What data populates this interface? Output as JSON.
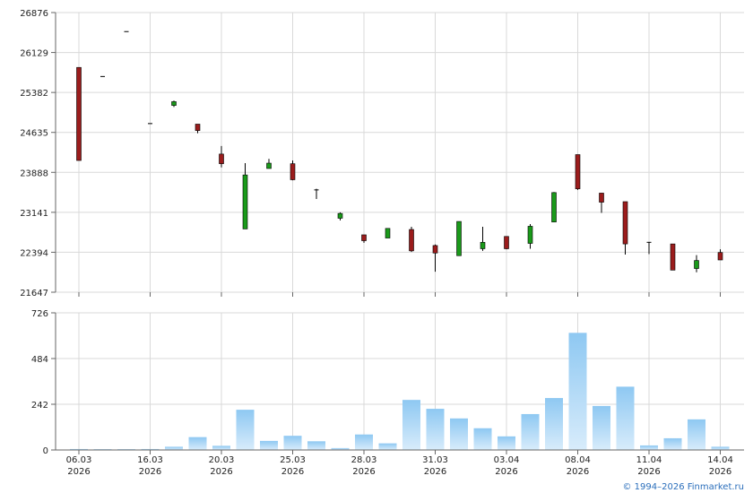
{
  "chart_data": [
    {
      "type": "candlestick",
      "ylim": [
        21647,
        26876
      ],
      "yticks": [
        "26876",
        "26129",
        "25382",
        "24635",
        "23888",
        "23141",
        "22394",
        "21647"
      ],
      "grid": true,
      "up_color": "#1a9a1a",
      "down_color": "#9b1c1c",
      "candles": [
        {
          "open": 25850,
          "high": 25850,
          "low": 24110,
          "close": 24110
        },
        {
          "open": 25680,
          "high": 25680,
          "low": 25680,
          "close": 25680
        },
        {
          "open": 26520,
          "high": 26520,
          "low": 26520,
          "close": 26520
        },
        {
          "open": 24800,
          "high": 24800,
          "low": 24800,
          "close": 24800
        },
        {
          "open": 25140,
          "high": 25230,
          "low": 25110,
          "close": 25210
        },
        {
          "open": 24790,
          "high": 24790,
          "low": 24620,
          "close": 24670
        },
        {
          "open": 24230,
          "high": 24380,
          "low": 23980,
          "close": 24050
        },
        {
          "open": 22830,
          "high": 24060,
          "low": 22830,
          "close": 23840
        },
        {
          "open": 23960,
          "high": 24140,
          "low": 23960,
          "close": 24060
        },
        {
          "open": 24050,
          "high": 24110,
          "low": 23740,
          "close": 23750
        },
        {
          "open": 23560,
          "high": 23580,
          "low": 23390,
          "close": 23560
        },
        {
          "open": 23030,
          "high": 23140,
          "low": 22990,
          "close": 23120
        },
        {
          "open": 22720,
          "high": 22720,
          "low": 22570,
          "close": 22610
        },
        {
          "open": 22660,
          "high": 22840,
          "low": 22660,
          "close": 22840
        },
        {
          "open": 22820,
          "high": 22870,
          "low": 22400,
          "close": 22420
        },
        {
          "open": 22520,
          "high": 22540,
          "low": 22030,
          "close": 22380
        },
        {
          "open": 22330,
          "high": 22970,
          "low": 22330,
          "close": 22970
        },
        {
          "open": 22460,
          "high": 22870,
          "low": 22420,
          "close": 22580
        },
        {
          "open": 22690,
          "high": 22690,
          "low": 22450,
          "close": 22460
        },
        {
          "open": 22560,
          "high": 22920,
          "low": 22460,
          "close": 22880
        },
        {
          "open": 22960,
          "high": 23520,
          "low": 22960,
          "close": 23510
        },
        {
          "open": 24220,
          "high": 24220,
          "low": 23560,
          "close": 23580
        },
        {
          "open": 23500,
          "high": 23500,
          "low": 23130,
          "close": 23330
        },
        {
          "open": 23340,
          "high": 23340,
          "low": 22350,
          "close": 22550
        },
        {
          "open": 22580,
          "high": 22580,
          "low": 22360,
          "close": 22580
        },
        {
          "open": 22550,
          "high": 22550,
          "low": 22060,
          "close": 22060
        },
        {
          "open": 22090,
          "high": 22340,
          "low": 22020,
          "close": 22240
        },
        {
          "open": 22390,
          "high": 22450,
          "low": 22250,
          "close": 22250
        }
      ]
    },
    {
      "type": "bar",
      "ylim": [
        0,
        726
      ],
      "yticks": [
        "726",
        "484",
        "242",
        "0"
      ],
      "color": "#8ec8f2",
      "values": [
        5,
        4,
        4,
        5,
        17,
        68,
        22,
        213,
        48,
        75,
        46,
        10,
        82,
        35,
        265,
        218,
        167,
        115,
        72,
        190,
        275,
        620,
        233,
        335,
        24,
        62,
        162,
        17
      ]
    }
  ],
  "x_ticks": [
    {
      "index": 0,
      "day": "06.03",
      "year": "2026"
    },
    {
      "index": 3,
      "day": "16.03",
      "year": "2026"
    },
    {
      "index": 6,
      "day": "20.03",
      "year": "2026"
    },
    {
      "index": 9,
      "day": "25.03",
      "year": "2026"
    },
    {
      "index": 12,
      "day": "28.03",
      "year": "2026"
    },
    {
      "index": 15,
      "day": "31.03",
      "year": "2026"
    },
    {
      "index": 18,
      "day": "03.04",
      "year": "2026"
    },
    {
      "index": 21,
      "day": "08.04",
      "year": "2026"
    },
    {
      "index": 24,
      "day": "11.04",
      "year": "2026"
    },
    {
      "index": 27,
      "day": "14.04",
      "year": "2026"
    }
  ],
  "credit": "© 1994–2026 Finmarket.ru"
}
